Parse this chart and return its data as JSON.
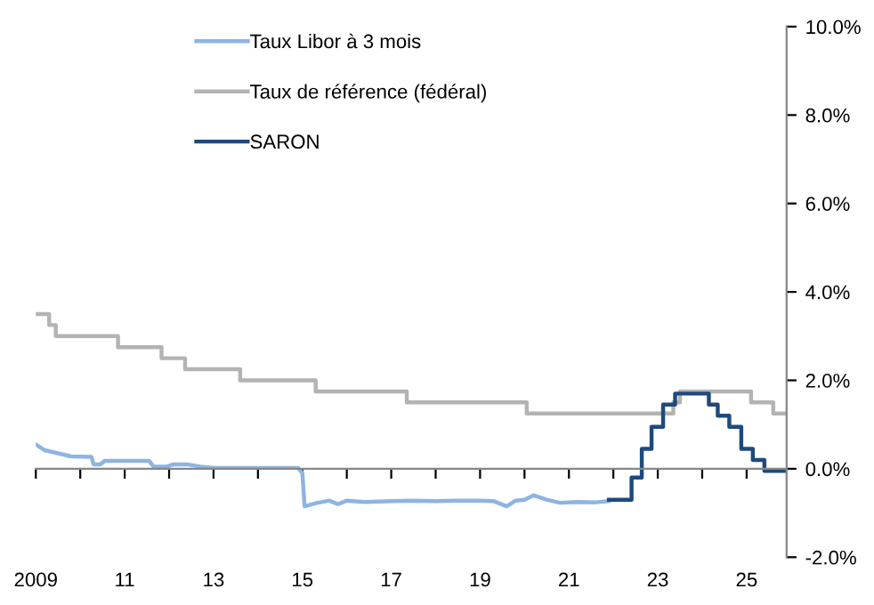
{
  "chart_data": {
    "type": "line",
    "series": [
      {
        "name": "Taux Libor à 3 mois",
        "color": "#8db4e2",
        "x": [
          2009.0,
          2009.2,
          2009.5,
          2009.8,
          2010.25,
          2010.3,
          2010.45,
          2010.55,
          2011.55,
          2011.65,
          2011.95,
          2012.1,
          2012.4,
          2012.7,
          2013.0,
          2014.9,
          2015.0,
          2015.05,
          2015.3,
          2015.6,
          2015.8,
          2016.0,
          2016.4,
          2017.0,
          2017.5,
          2018.0,
          2018.5,
          2019.0,
          2019.3,
          2019.6,
          2019.8,
          2020.0,
          2020.2,
          2020.5,
          2020.8,
          2021.2,
          2021.6,
          2021.9
        ],
        "values": [
          0.55,
          0.42,
          0.35,
          0.28,
          0.27,
          0.1,
          0.1,
          0.18,
          0.18,
          0.05,
          0.05,
          0.1,
          0.1,
          0.05,
          0.02,
          0.02,
          -0.1,
          -0.85,
          -0.78,
          -0.72,
          -0.8,
          -0.72,
          -0.75,
          -0.73,
          -0.72,
          -0.73,
          -0.72,
          -0.72,
          -0.73,
          -0.85,
          -0.72,
          -0.7,
          -0.6,
          -0.7,
          -0.77,
          -0.75,
          -0.76,
          -0.73
        ]
      },
      {
        "name": "Taux de référence (fédéral)",
        "type": "step",
        "color": "#b3b3b3",
        "x": [
          2009.0,
          2009.3,
          2009.45,
          2010.85,
          2011.83,
          2012.36,
          2013.6,
          2015.3,
          2017.35,
          2020.05,
          2023.35,
          2023.5,
          2025.1,
          2025.6,
          2025.88
        ],
        "values": [
          3.5,
          3.25,
          3.0,
          2.75,
          2.5,
          2.25,
          2.0,
          1.75,
          1.5,
          1.25,
          1.5,
          1.75,
          1.5,
          1.25,
          1.25
        ]
      },
      {
        "name": "SARON",
        "type": "step",
        "color": "#1f497d",
        "x": [
          2021.9,
          2022.41,
          2022.64,
          2022.86,
          2023.12,
          2023.39,
          2024.15,
          2024.35,
          2024.61,
          2024.88,
          2025.14,
          2025.4,
          2025.88
        ],
        "values": [
          -0.7,
          -0.2,
          0.45,
          0.95,
          1.45,
          1.7,
          1.45,
          1.2,
          0.95,
          0.45,
          0.2,
          -0.05,
          -0.05
        ]
      }
    ],
    "xlim": [
      2009,
      2025.9
    ],
    "xticks": [
      {
        "value": 2009,
        "label": "2009"
      },
      {
        "value": 2010,
        "label": null
      },
      {
        "value": 2011,
        "label": "11"
      },
      {
        "value": 2012,
        "label": null
      },
      {
        "value": 2013,
        "label": "13"
      },
      {
        "value": 2014,
        "label": null
      },
      {
        "value": 2015,
        "label": "15"
      },
      {
        "value": 2016,
        "label": null
      },
      {
        "value": 2017,
        "label": "17"
      },
      {
        "value": 2018,
        "label": null
      },
      {
        "value": 2019,
        "label": "19"
      },
      {
        "value": 2020,
        "label": null
      },
      {
        "value": 2021,
        "label": "21"
      },
      {
        "value": 2022,
        "label": null
      },
      {
        "value": 2023,
        "label": "23"
      },
      {
        "value": 2024,
        "label": null
      },
      {
        "value": 2025,
        "label": "25"
      }
    ],
    "ylim": [
      -2,
      10
    ],
    "yticks": [
      {
        "value": -2,
        "label": "-2.0%"
      },
      {
        "value": 0,
        "label": "0.0%"
      },
      {
        "value": 2,
        "label": "2.0%"
      },
      {
        "value": 4,
        "label": "4.0%"
      },
      {
        "value": 6,
        "label": "6.0%"
      },
      {
        "value": 8,
        "label": "8.0%"
      },
      {
        "value": 10,
        "label": "10.0%"
      }
    ],
    "legend": "top left",
    "line_style": "solid",
    "marker": "none"
  }
}
